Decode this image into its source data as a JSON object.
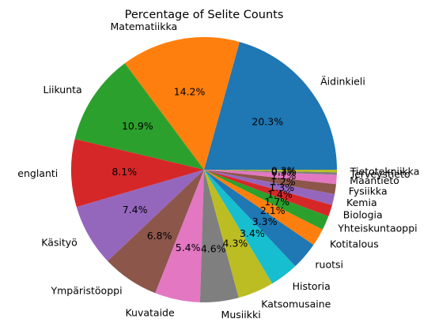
{
  "chart_data": {
    "type": "pie",
    "title": "Percentage of Selite Counts",
    "categories": [
      "Äidinkieli",
      "Matematiikka",
      "Liikunta",
      "englanti",
      "Käsityö",
      "Ympäristöoppi",
      "Kuvataide",
      "Musiikki",
      "Katsomusaine",
      "Historia",
      "ruotsi",
      "Kotitalous",
      "Yhteiskuntaoppi",
      "Biologia",
      "Kemia",
      "Fysiikka",
      "Maantieto",
      "Terveystieto",
      "Tietotekniikka"
    ],
    "values": [
      20.3,
      14.2,
      10.9,
      8.1,
      7.4,
      6.8,
      5.4,
      4.6,
      4.3,
      3.4,
      3.3,
      2.1,
      1.7,
      1.4,
      1.3,
      1.2,
      1.1,
      0.3,
      0.3
    ],
    "labels": [
      "20.3%",
      "14.2%",
      "10.9%",
      "8.1%",
      "7.4%",
      "6.8%",
      "5.4%",
      "4.6%",
      "4.3%",
      "3.4%",
      "3.3%",
      "2.1%",
      "1.7%",
      "1.4%",
      "1.3%",
      "1.2%",
      "1.1%",
      "0.3%",
      "0.3%"
    ],
    "colors": [
      "#1f77b4",
      "#ff7f0e",
      "#2ca02c",
      "#d62728",
      "#9467bd",
      "#8c564b",
      "#e377c2",
      "#7f7f7f",
      "#bcbd22",
      "#17becf",
      "#1f77b4",
      "#ff7f0e",
      "#2ca02c",
      "#d62728",
      "#9467bd",
      "#8c564b",
      "#e377c2",
      "#7f7f7f",
      "#bcbd22"
    ],
    "start_angle": "0 degrees (3 o'clock), counter-clockwise"
  }
}
